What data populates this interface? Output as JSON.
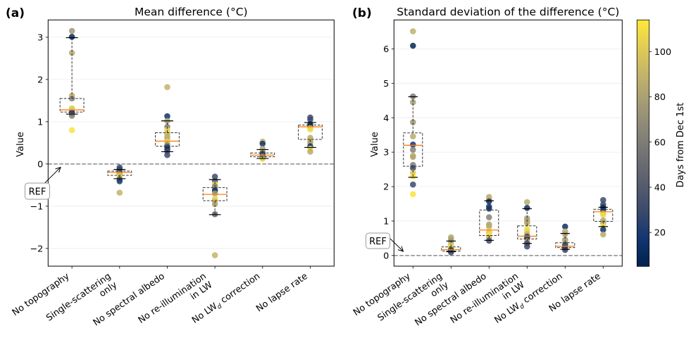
{
  "figure": {
    "panels": [
      {
        "label": "(a)",
        "title": "Mean difference (°C)",
        "ylabel": "Value",
        "ref_label": "REF"
      },
      {
        "label": "(b)",
        "title": "Standard deviation of the difference (°C)",
        "ylabel": "Value",
        "ref_label": "REF"
      }
    ],
    "colorbar": {
      "label": "Days from Dec 1st",
      "colormap": "cividis",
      "range": [
        5,
        114
      ],
      "ticks": {
        "values": [
          20,
          40,
          60,
          80,
          100
        ],
        "labels": [
          "20",
          "40",
          "60",
          "80",
          "100"
        ]
      },
      "colormap_stops": [
        "#00224e",
        "#123570",
        "#3b496c",
        "#575d6d",
        "#707173",
        "#8a8678",
        "#a59c74",
        "#c3b369",
        "#e1cc55",
        "#fee838"
      ]
    },
    "colors": {
      "median": "#ff7f0e",
      "box_edge": "#333333",
      "cap": "#000000",
      "reference_line": "#8a8a8a",
      "grid": "#ebebeb",
      "ref_box_edge": "#9a9a9a"
    }
  },
  "chart_data": [
    {
      "type": "scatter",
      "overlay": "boxplot",
      "title": "Mean difference (°C)",
      "xlabel": "",
      "ylabel": "Value",
      "xlim": [
        0.5,
        6.5
      ],
      "ylim": [
        -2.42,
        3.41
      ],
      "grid": "horizontal",
      "legend": "none (colorbar on right)",
      "yticks": {
        "values": [
          -2,
          -1,
          0,
          1,
          2,
          3
        ],
        "labels": [
          "−2",
          "−1",
          "0",
          "1",
          "2",
          "3"
        ]
      },
      "reference": {
        "value": 0,
        "style": "dashed",
        "annotation": "REF"
      },
      "categories": [
        "No topography",
        "Single-scattering only",
        "No spectral albedo",
        "No re-illumination in LW",
        "No LWd correction",
        "No lapse rate"
      ],
      "tick_labels": [
        {
          "lines": [
            {
              "text": "No topography"
            }
          ]
        },
        {
          "lines": [
            {
              "text": "Single-scattering"
            },
            {
              "text": "only"
            }
          ]
        },
        {
          "lines": [
            {
              "text": "No spectral albedo"
            }
          ]
        },
        {
          "lines": [
            {
              "text": "No re-illumination"
            },
            {
              "text": "in LW"
            }
          ]
        },
        {
          "lines": [
            {
              "text": "No LW",
              "sub": "d",
              "after": " correction"
            }
          ]
        },
        {
          "lines": [
            {
              "text": "No lapse rate"
            }
          ]
        }
      ],
      "point_fields": [
        "value",
        "day"
      ],
      "series": [
        {
          "category": "No topography",
          "box": {
            "whislo": 1.18,
            "q1": 1.23,
            "med": 1.28,
            "q3": 1.55,
            "whishi": 2.99
          },
          "points": [
            [
              3.15,
              75
            ],
            [
              3.01,
              10
            ],
            [
              2.63,
              85
            ],
            [
              1.62,
              90
            ],
            [
              1.55,
              62
            ],
            [
              1.32,
              105
            ],
            [
              1.29,
              100
            ],
            [
              1.22,
              15
            ],
            [
              1.19,
              30
            ],
            [
              1.14,
              65
            ],
            [
              0.8,
              112
            ]
          ]
        },
        {
          "category": "Single-scattering only",
          "box": {
            "whislo": -0.35,
            "q1": -0.27,
            "med": -0.2,
            "q3": -0.17,
            "whishi": -0.13
          },
          "points": [
            [
              -0.08,
              30
            ],
            [
              -0.13,
              25
            ],
            [
              -0.17,
              35
            ],
            [
              -0.22,
              60
            ],
            [
              -0.27,
              100
            ],
            [
              -0.31,
              108
            ],
            [
              -0.36,
              40
            ],
            [
              -0.41,
              20
            ],
            [
              -0.68,
              90
            ]
          ]
        },
        {
          "category": "No spectral albedo",
          "box": {
            "whislo": 0.29,
            "q1": 0.42,
            "med": 0.54,
            "q3": 0.74,
            "whishi": 1.02
          },
          "points": [
            [
              1.82,
              90
            ],
            [
              1.13,
              15
            ],
            [
              1.02,
              80
            ],
            [
              0.88,
              62
            ],
            [
              0.8,
              105
            ],
            [
              0.72,
              95
            ],
            [
              0.65,
              85
            ],
            [
              0.6,
              88
            ],
            [
              0.52,
              108
            ],
            [
              0.45,
              62
            ],
            [
              0.4,
              25
            ],
            [
              0.35,
              12
            ],
            [
              0.3,
              30
            ],
            [
              0.21,
              30
            ]
          ]
        },
        {
          "category": "No re-illumination in LW",
          "box": {
            "whislo": -1.2,
            "q1": -0.87,
            "med": -0.72,
            "q3": -0.56,
            "whishi": -0.37
          },
          "points": [
            [
              -0.3,
              30
            ],
            [
              -0.4,
              35
            ],
            [
              -0.48,
              105
            ],
            [
              -0.53,
              62
            ],
            [
              -0.58,
              72
            ],
            [
              -0.63,
              12
            ],
            [
              -0.7,
              78
            ],
            [
              -0.82,
              105
            ],
            [
              -0.88,
              95
            ],
            [
              -0.95,
              80
            ],
            [
              -1.19,
              45
            ],
            [
              -2.16,
              90
            ]
          ]
        },
        {
          "category": "No LWd correction",
          "box": {
            "whislo": 0.13,
            "q1": 0.17,
            "med": 0.21,
            "q3": 0.26,
            "whishi": 0.34
          },
          "points": [
            [
              0.53,
              90
            ],
            [
              0.48,
              15
            ],
            [
              0.36,
              80
            ],
            [
              0.3,
              85
            ],
            [
              0.25,
              30
            ],
            [
              0.22,
              20
            ],
            [
              0.18,
              62
            ],
            [
              0.15,
              25
            ],
            [
              0.12,
              108
            ]
          ]
        },
        {
          "category": "No lapse rate",
          "box": {
            "whislo": 0.39,
            "q1": 0.58,
            "med": 0.88,
            "q3": 0.92,
            "whishi": 0.98
          },
          "points": [
            [
              1.1,
              30
            ],
            [
              1.05,
              30
            ],
            [
              0.95,
              20
            ],
            [
              0.9,
              10
            ],
            [
              0.85,
              100
            ],
            [
              0.82,
              108
            ],
            [
              0.62,
              85
            ],
            [
              0.55,
              90
            ],
            [
              0.5,
              80
            ],
            [
              0.42,
              20
            ],
            [
              0.36,
              110
            ],
            [
              0.29,
              85
            ]
          ]
        }
      ]
    },
    {
      "type": "scatter",
      "overlay": "boxplot",
      "title": "Standard deviation of the difference (°C)",
      "xlabel": "",
      "ylabel": "Value",
      "xlim": [
        0.5,
        6.5
      ],
      "ylim": [
        -0.31,
        6.84
      ],
      "grid": "horizontal",
      "legend": "none (colorbar on right)",
      "yticks": {
        "values": [
          0,
          1,
          2,
          3,
          4,
          5,
          6
        ],
        "labels": [
          "0",
          "1",
          "2",
          "3",
          "4",
          "5",
          "6"
        ]
      },
      "reference": {
        "value": 0,
        "style": "dashed",
        "annotation": "REF"
      },
      "categories": [
        "No topography",
        "Single-scattering only",
        "No spectral albedo",
        "No re-illumination in LW",
        "No LWd correction",
        "No lapse rate"
      ],
      "tick_labels": [
        {
          "lines": [
            {
              "text": "No topography"
            }
          ]
        },
        {
          "lines": [
            {
              "text": "Single-scattering"
            },
            {
              "text": "only"
            }
          ]
        },
        {
          "lines": [
            {
              "text": "No spectral albedo"
            }
          ]
        },
        {
          "lines": [
            {
              "text": "No re-illumination"
            },
            {
              "text": "in LW"
            }
          ]
        },
        {
          "lines": [
            {
              "text": "No LW",
              "sub": "d",
              "after": " correction"
            }
          ]
        },
        {
          "lines": [
            {
              "text": "No lapse rate"
            }
          ]
        }
      ],
      "point_fields": [
        "value",
        "day"
      ],
      "series": [
        {
          "category": "No topography",
          "box": {
            "whislo": 2.27,
            "q1": 2.59,
            "med": 3.2,
            "q3": 3.56,
            "whishi": 4.61
          },
          "points": [
            [
              6.51,
              88
            ],
            [
              6.09,
              8
            ],
            [
              4.62,
              60
            ],
            [
              4.45,
              78
            ],
            [
              3.87,
              75
            ],
            [
              3.46,
              85
            ],
            [
              3.22,
              15
            ],
            [
              3.07,
              62
            ],
            [
              2.9,
              88
            ],
            [
              2.86,
              82
            ],
            [
              2.63,
              62
            ],
            [
              2.54,
              30
            ],
            [
              2.4,
              100
            ],
            [
              2.3,
              110
            ],
            [
              2.06,
              30
            ],
            [
              1.78,
              112
            ]
          ]
        },
        {
          "category": "Single-scattering only",
          "box": {
            "whislo": 0.11,
            "q1": 0.13,
            "med": 0.17,
            "q3": 0.25,
            "whishi": 0.42
          },
          "points": [
            [
              0.53,
              85
            ],
            [
              0.47,
              80
            ],
            [
              0.4,
              75
            ],
            [
              0.3,
              95
            ],
            [
              0.25,
              108
            ],
            [
              0.2,
              105
            ],
            [
              0.17,
              30
            ],
            [
              0.13,
              20
            ],
            [
              0.09,
              35
            ]
          ]
        },
        {
          "category": "No spectral albedo",
          "box": {
            "whislo": 0.44,
            "q1": 0.58,
            "med": 0.74,
            "q3": 1.32,
            "whishi": 1.59
          },
          "points": [
            [
              1.7,
              85
            ],
            [
              1.63,
              90
            ],
            [
              1.57,
              15
            ],
            [
              1.42,
              20
            ],
            [
              1.36,
              15
            ],
            [
              1.11,
              62
            ],
            [
              0.9,
              80
            ],
            [
              0.84,
              85
            ],
            [
              0.7,
              108
            ],
            [
              0.65,
              100
            ],
            [
              0.6,
              110
            ],
            [
              0.52,
              88
            ],
            [
              0.43,
              30
            ]
          ]
        },
        {
          "category": "No re-illumination in LW",
          "box": {
            "whislo": 0.35,
            "q1": 0.48,
            "med": 0.56,
            "q3": 0.86,
            "whishi": 1.36
          },
          "points": [
            [
              1.55,
              85
            ],
            [
              1.38,
              12
            ],
            [
              1.08,
              80
            ],
            [
              1.0,
              78
            ],
            [
              0.94,
              85
            ],
            [
              0.77,
              110
            ],
            [
              0.7,
              105
            ],
            [
              0.62,
              90
            ],
            [
              0.55,
              25
            ],
            [
              0.5,
              20
            ],
            [
              0.42,
              85
            ],
            [
              0.35,
              30
            ],
            [
              0.26,
              30
            ]
          ]
        },
        {
          "category": "No LWd correction",
          "box": {
            "whislo": 0.18,
            "q1": 0.23,
            "med": 0.27,
            "q3": 0.37,
            "whishi": 0.64
          },
          "points": [
            [
              0.84,
              12
            ],
            [
              0.7,
              85
            ],
            [
              0.62,
              80
            ],
            [
              0.46,
              75
            ],
            [
              0.4,
              85
            ],
            [
              0.31,
              20
            ],
            [
              0.27,
              35
            ],
            [
              0.22,
              30
            ],
            [
              0.16,
              30
            ]
          ]
        },
        {
          "category": "No lapse rate",
          "box": {
            "whislo": 0.84,
            "q1": 0.99,
            "med": 1.27,
            "q3": 1.34,
            "whishi": 1.4
          },
          "points": [
            [
              1.61,
              30
            ],
            [
              1.48,
              30
            ],
            [
              1.4,
              15
            ],
            [
              1.33,
              12
            ],
            [
              1.22,
              100
            ],
            [
              1.18,
              108
            ],
            [
              1.02,
              85
            ],
            [
              0.95,
              80
            ],
            [
              0.87,
              110
            ],
            [
              0.75,
              15
            ],
            [
              0.61,
              85
            ]
          ]
        }
      ]
    }
  ]
}
